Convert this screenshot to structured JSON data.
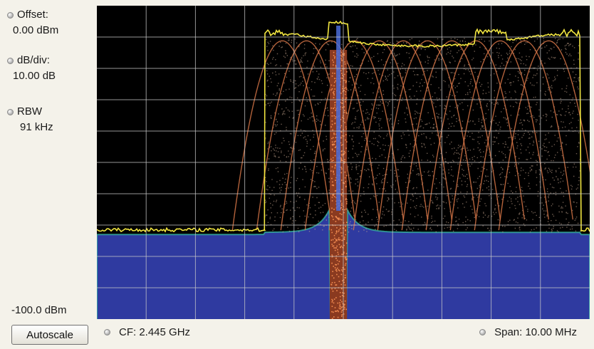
{
  "side_panel": {
    "offset": {
      "label": "Offset:",
      "value": "0.00 dBm"
    },
    "db_div": {
      "label": "dB/div:",
      "value": "10.00 dB"
    },
    "rbw": {
      "label": "RBW",
      "value": "91 kHz"
    }
  },
  "ref_level_bottom": "-100.0 dBm",
  "autoscale_label": "Autoscale",
  "cf_label": "CF: 2.445 GHz",
  "span_label": "Span: 10.00 MHz",
  "colors": {
    "plot_background": "#000000",
    "grid": "#c8c8c8",
    "max_hold_trace": "#f2e640",
    "persistence_trace": "#e07a4a",
    "noise_fill": "#2f3aa0"
  },
  "chart_data": {
    "type": "spectrum",
    "center_frequency_ghz": 2.445,
    "span_mhz": 10.0,
    "db_per_div": 10.0,
    "reference_level_dbm": 0.0,
    "bottom_level_dbm": -100.0,
    "grid": {
      "x_divisions": 10,
      "y_divisions": 10,
      "shown": true
    },
    "noise_floor_dbm": -73,
    "signals": [
      {
        "kind": "wideband hopping block",
        "start_offset_mhz": -1.6,
        "end_offset_mhz": 4.8,
        "level_dbm": -8
      },
      {
        "kind": "narrowband carrier",
        "offset_mhz": -0.1,
        "bandwidth_mhz": 0.35,
        "level_dbm": -5
      }
    ]
  }
}
